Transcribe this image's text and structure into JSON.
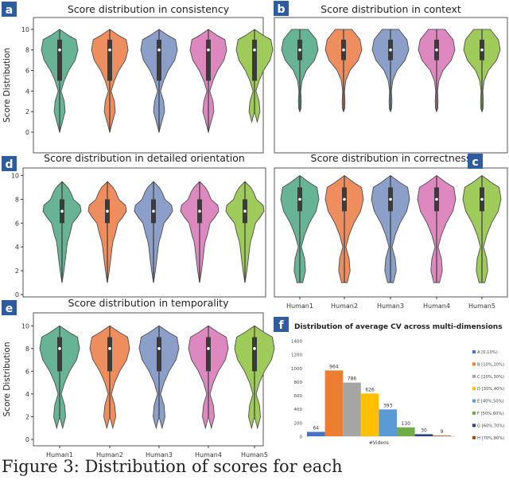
{
  "figure_caption": "Figure 3:  Distribution of scores for each",
  "colors": {
    "panel_badge": "#2e5c9e",
    "violins": [
      "#66b495",
      "#ee8e5e",
      "#8b9fc8",
      "#de88c0",
      "#9fcb5a"
    ],
    "cv_bars": [
      "#4472c4",
      "#ed7d31",
      "#a5a5a5",
      "#ffc000",
      "#5b9bd5",
      "#70ad47",
      "#264478",
      "#9e480e"
    ]
  },
  "chart_data": [
    {
      "panel": "a",
      "type": "violin",
      "title": "Score distribution in consistency",
      "ylabel": "Score Distribution",
      "xlabel": "",
      "ylim": [
        0,
        11
      ],
      "yticks": [
        0,
        2,
        4,
        6,
        8,
        10
      ],
      "categories": [
        "",
        "",
        "",
        "",
        ""
      ],
      "series": [
        {
          "name": "Human1",
          "min": 0,
          "q1": 5,
          "median": 8,
          "q3": 9,
          "max": 10
        },
        {
          "name": "Human2",
          "min": 0,
          "q1": 5,
          "median": 8,
          "q3": 9,
          "max": 10
        },
        {
          "name": "Human3",
          "min": 0,
          "q1": 5,
          "median": 8,
          "q3": 9,
          "max": 10
        },
        {
          "name": "Human4",
          "min": 0,
          "q1": 5,
          "median": 8,
          "q3": 9,
          "max": 10
        },
        {
          "name": "Human5",
          "min": 2,
          "q1": 5,
          "median": 8,
          "q3": 9,
          "max": 10
        }
      ]
    },
    {
      "panel": "b",
      "type": "violin",
      "title": "Score distribution in context",
      "ylabel": "",
      "xlabel": "",
      "ylim": [
        0,
        11
      ],
      "yticks": [],
      "categories": [
        "",
        "",
        "",
        "",
        ""
      ],
      "series": [
        {
          "name": "Human1",
          "min": 2,
          "q1": 7,
          "median": 8,
          "q3": 9,
          "max": 10
        },
        {
          "name": "Human2",
          "min": 2,
          "q1": 7,
          "median": 8,
          "q3": 9,
          "max": 10
        },
        {
          "name": "Human3",
          "min": 2,
          "q1": 7,
          "median": 8,
          "q3": 9,
          "max": 10
        },
        {
          "name": "Human4",
          "min": 2,
          "q1": 7,
          "median": 8,
          "q3": 9,
          "max": 10
        },
        {
          "name": "Human5",
          "min": 2,
          "q1": 7,
          "median": 8,
          "q3": 9,
          "max": 10
        }
      ]
    },
    {
      "panel": "d",
      "type": "violin",
      "title": "Score distribution in detailed orientation",
      "ylabel": "",
      "xlabel": "",
      "ylim": [
        0,
        10.5
      ],
      "yticks": [
        0,
        2,
        4,
        6,
        8,
        10
      ],
      "categories": [
        "",
        "",
        "",
        "",
        ""
      ],
      "series": [
        {
          "name": "Human1",
          "min": 1,
          "q1": 6,
          "median": 7,
          "q3": 8,
          "max": 9.5
        },
        {
          "name": "Human2",
          "min": 1,
          "q1": 6,
          "median": 7,
          "q3": 8,
          "max": 9.5
        },
        {
          "name": "Human3",
          "min": 1,
          "q1": 6,
          "median": 7,
          "q3": 8,
          "max": 9.5
        },
        {
          "name": "Human4",
          "min": 1,
          "q1": 6,
          "median": 7,
          "q3": 8,
          "max": 9.5
        },
        {
          "name": "Human5",
          "min": 1,
          "q1": 6,
          "median": 7,
          "q3": 8,
          "max": 9.5
        }
      ]
    },
    {
      "panel": "c",
      "type": "violin",
      "title": "Score distribution in correctness",
      "ylabel": "",
      "xlabel": "",
      "ylim": [
        0,
        10.5
      ],
      "yticks": [],
      "categories": [
        "Human1",
        "Human2",
        "Human3",
        "Human4",
        "Human5"
      ],
      "series": [
        {
          "name": "Human1",
          "min": 1,
          "q1": 7,
          "median": 8,
          "q3": 9,
          "max": 10
        },
        {
          "name": "Human2",
          "min": 1,
          "q1": 7,
          "median": 8,
          "q3": 9,
          "max": 10
        },
        {
          "name": "Human3",
          "min": 1,
          "q1": 7,
          "median": 8,
          "q3": 9,
          "max": 10
        },
        {
          "name": "Human4",
          "min": 1,
          "q1": 7,
          "median": 8,
          "q3": 9,
          "max": 10
        },
        {
          "name": "Human5",
          "min": 1,
          "q1": 7,
          "median": 8,
          "q3": 9,
          "max": 10
        }
      ]
    },
    {
      "panel": "e",
      "type": "violin",
      "title": "Score distribution in temporality",
      "ylabel": "Score Distribution",
      "xlabel": "",
      "ylim": [
        0,
        11
      ],
      "yticks": [
        0,
        2,
        4,
        6,
        8,
        10
      ],
      "categories": [
        "Human1",
        "Human2",
        "Human3",
        "Human4",
        "Human5"
      ],
      "series": [
        {
          "name": "Human1",
          "min": 2,
          "q1": 6,
          "median": 8,
          "q3": 9,
          "max": 10
        },
        {
          "name": "Human2",
          "min": 2,
          "q1": 6,
          "median": 8,
          "q3": 9,
          "max": 10
        },
        {
          "name": "Human3",
          "min": 2,
          "q1": 6,
          "median": 8,
          "q3": 9,
          "max": 10
        },
        {
          "name": "Human4",
          "min": 2,
          "q1": 6,
          "median": 8,
          "q3": 9,
          "max": 10
        },
        {
          "name": "Human5",
          "min": 2,
          "q1": 6,
          "median": 8,
          "q3": 9,
          "max": 10
        }
      ]
    },
    {
      "panel": "f",
      "type": "bar",
      "title": "Distribution of average CV across multi-dimensions",
      "xlabel": "#Videos",
      "ylabel": "",
      "ylim": [
        0,
        1400
      ],
      "yticks": [
        0,
        200,
        400,
        600,
        800,
        1000,
        1200,
        1400
      ],
      "categories": [
        "A [0,10%)",
        "B [10%,20%)",
        "C [20%,30%)",
        "D [30%,40%)",
        "E [40%,50%)",
        "F [50%,60%)",
        "G [60%,70%)",
        "H [70%,80%)"
      ],
      "values": [
        64,
        964,
        786,
        626,
        393,
        130,
        30,
        9
      ],
      "legend": "right"
    }
  ]
}
